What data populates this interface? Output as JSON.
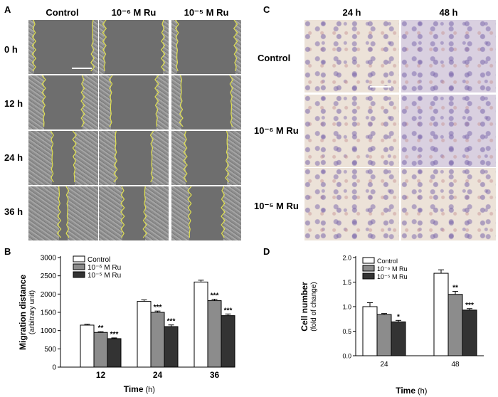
{
  "panels": {
    "A": {
      "letter": "A",
      "col_heads": [
        "Control",
        "10⁻⁶ M Ru",
        "10⁻⁵ M Ru"
      ],
      "row_heads": [
        "0 h",
        "12 h",
        "24 h",
        "36 h"
      ]
    },
    "C": {
      "letter": "C",
      "col_heads": [
        "24 h",
        "48 h"
      ],
      "row_heads": [
        "Control",
        "10⁻⁶ M Ru",
        "10⁻⁵ M Ru"
      ]
    },
    "B": {
      "letter": "B"
    },
    "D": {
      "letter": "D"
    }
  },
  "colors": {
    "control": "#ffffff",
    "ru6": "#8c8c8c",
    "ru5": "#333333",
    "wound_line": "#e0e050"
  },
  "chart_data": [
    {
      "id": "B",
      "type": "bar",
      "categories": [
        "12",
        "24",
        "36"
      ],
      "series": [
        {
          "name": "Control",
          "values": [
            1150,
            1800,
            2330
          ],
          "errors": [
            25,
            40,
            50
          ],
          "sig": [
            "",
            "",
            ""
          ]
        },
        {
          "name": "10⁻⁶ M Ru",
          "values": [
            950,
            1500,
            1820
          ],
          "errors": [
            20,
            35,
            40
          ],
          "sig": [
            "**",
            "***",
            "***"
          ]
        },
        {
          "name": "10⁻⁵ M Ru",
          "values": [
            780,
            1110,
            1410
          ],
          "errors": [
            20,
            45,
            45
          ],
          "sig": [
            "***",
            "***",
            "***"
          ]
        }
      ],
      "ylabel": "Migration distance",
      "ylabel_unit": "(arbitrary unit)",
      "xlabel": "Time",
      "xlabel_unit": "(h)",
      "ylim": [
        0,
        3000
      ],
      "yticks": [
        0,
        500,
        1000,
        1500,
        2000,
        2500,
        3000
      ],
      "legend": "top-left"
    },
    {
      "id": "D",
      "type": "bar",
      "categories": [
        "24",
        "48"
      ],
      "series": [
        {
          "name": "Control",
          "values": [
            1.0,
            1.68
          ],
          "errors": [
            0.08,
            0.07
          ],
          "sig": [
            "",
            ""
          ]
        },
        {
          "name": "10⁻⁶ M Ru",
          "values": [
            0.84,
            1.25
          ],
          "errors": [
            0.02,
            0.06
          ],
          "sig": [
            "",
            "**"
          ]
        },
        {
          "name": "10⁻⁵ M Ru",
          "values": [
            0.69,
            0.93
          ],
          "errors": [
            0.03,
            0.03
          ],
          "sig": [
            "*",
            "***"
          ]
        }
      ],
      "ylabel": "Cell number",
      "ylabel_unit": "(fold of change)",
      "xlabel": "Time",
      "xlabel_unit": "(h)",
      "ylim": [
        0,
        2.0
      ],
      "yticks": [
        "0.0",
        "0.5",
        "1.0",
        "1.5",
        "2.0"
      ],
      "legend": "top-left"
    }
  ]
}
